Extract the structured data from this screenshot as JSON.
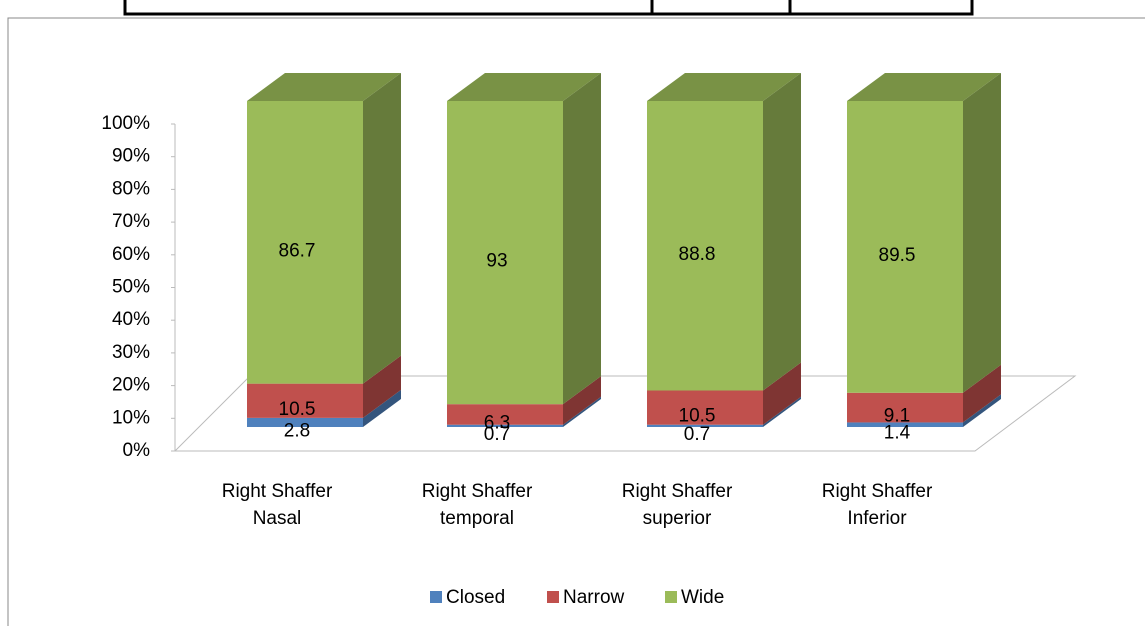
{
  "chart_data": {
    "type": "bar3d_stacked",
    "categories": [
      "Right Shaffer Nasal",
      "Right Shaffer temporal",
      "Right Shaffer superior",
      "Right Shaffer Inferior"
    ],
    "series": [
      {
        "name": "Closed",
        "color": "#4f81bd",
        "values": [
          2.8,
          0.7,
          0.7,
          1.4
        ]
      },
      {
        "name": "Narrow",
        "color": "#c0504d",
        "values": [
          10.5,
          6.3,
          10.5,
          9.1
        ]
      },
      {
        "name": "Wide",
        "color": "#9bbb59",
        "values": [
          86.7,
          93,
          88.8,
          89.5
        ]
      }
    ],
    "ylim": [
      0,
      100
    ],
    "yticks": [
      {
        "value": 0,
        "label": "0%"
      },
      {
        "value": 10,
        "label": "10%"
      },
      {
        "value": 20,
        "label": "20%"
      },
      {
        "value": 30,
        "label": "30%"
      },
      {
        "value": 40,
        "label": "40%"
      },
      {
        "value": 50,
        "label": "50%"
      },
      {
        "value": 60,
        "label": "60%"
      },
      {
        "value": 70,
        "label": "70%"
      },
      {
        "value": 80,
        "label": "80%"
      },
      {
        "value": 90,
        "label": "90%"
      },
      {
        "value": 100,
        "label": "100%"
      }
    ],
    "legend": "bottom"
  }
}
